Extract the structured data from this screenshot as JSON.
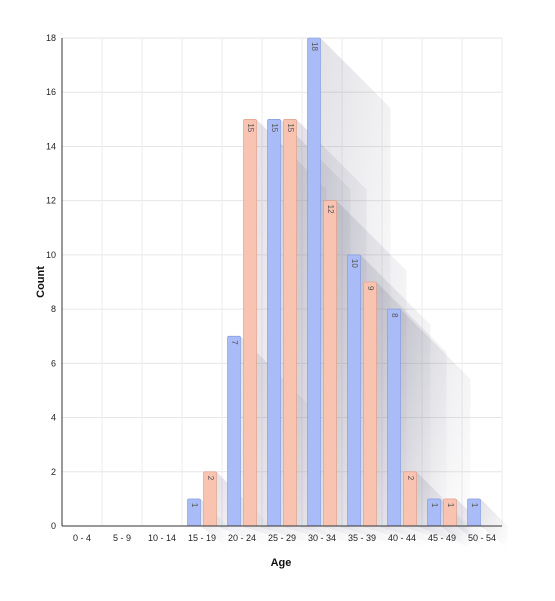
{
  "chart_data": {
    "type": "bar",
    "xlabel": "Age",
    "ylabel": "Count",
    "categories": [
      "0 - 4",
      "5 - 9",
      "10 - 14",
      "15 - 19",
      "20 - 24",
      "25 - 29",
      "30 - 34",
      "35 - 39",
      "40 - 44",
      "45 - 49",
      "50 - 54"
    ],
    "ylim": [
      0,
      18
    ],
    "yticks": [
      0,
      2,
      4,
      6,
      8,
      10,
      12,
      14,
      16,
      18
    ],
    "grid": true,
    "legend": "none",
    "series": [
      {
        "color": "#a9bcf7",
        "stroke": "#7f96e0",
        "values": [
          0,
          0,
          0,
          1,
          7,
          15,
          18,
          10,
          8,
          1,
          1
        ]
      },
      {
        "color": "#f9c3b1",
        "stroke": "#e29a82",
        "values": [
          0,
          0,
          0,
          2,
          15,
          15,
          12,
          9,
          2,
          1,
          null
        ]
      }
    ]
  }
}
